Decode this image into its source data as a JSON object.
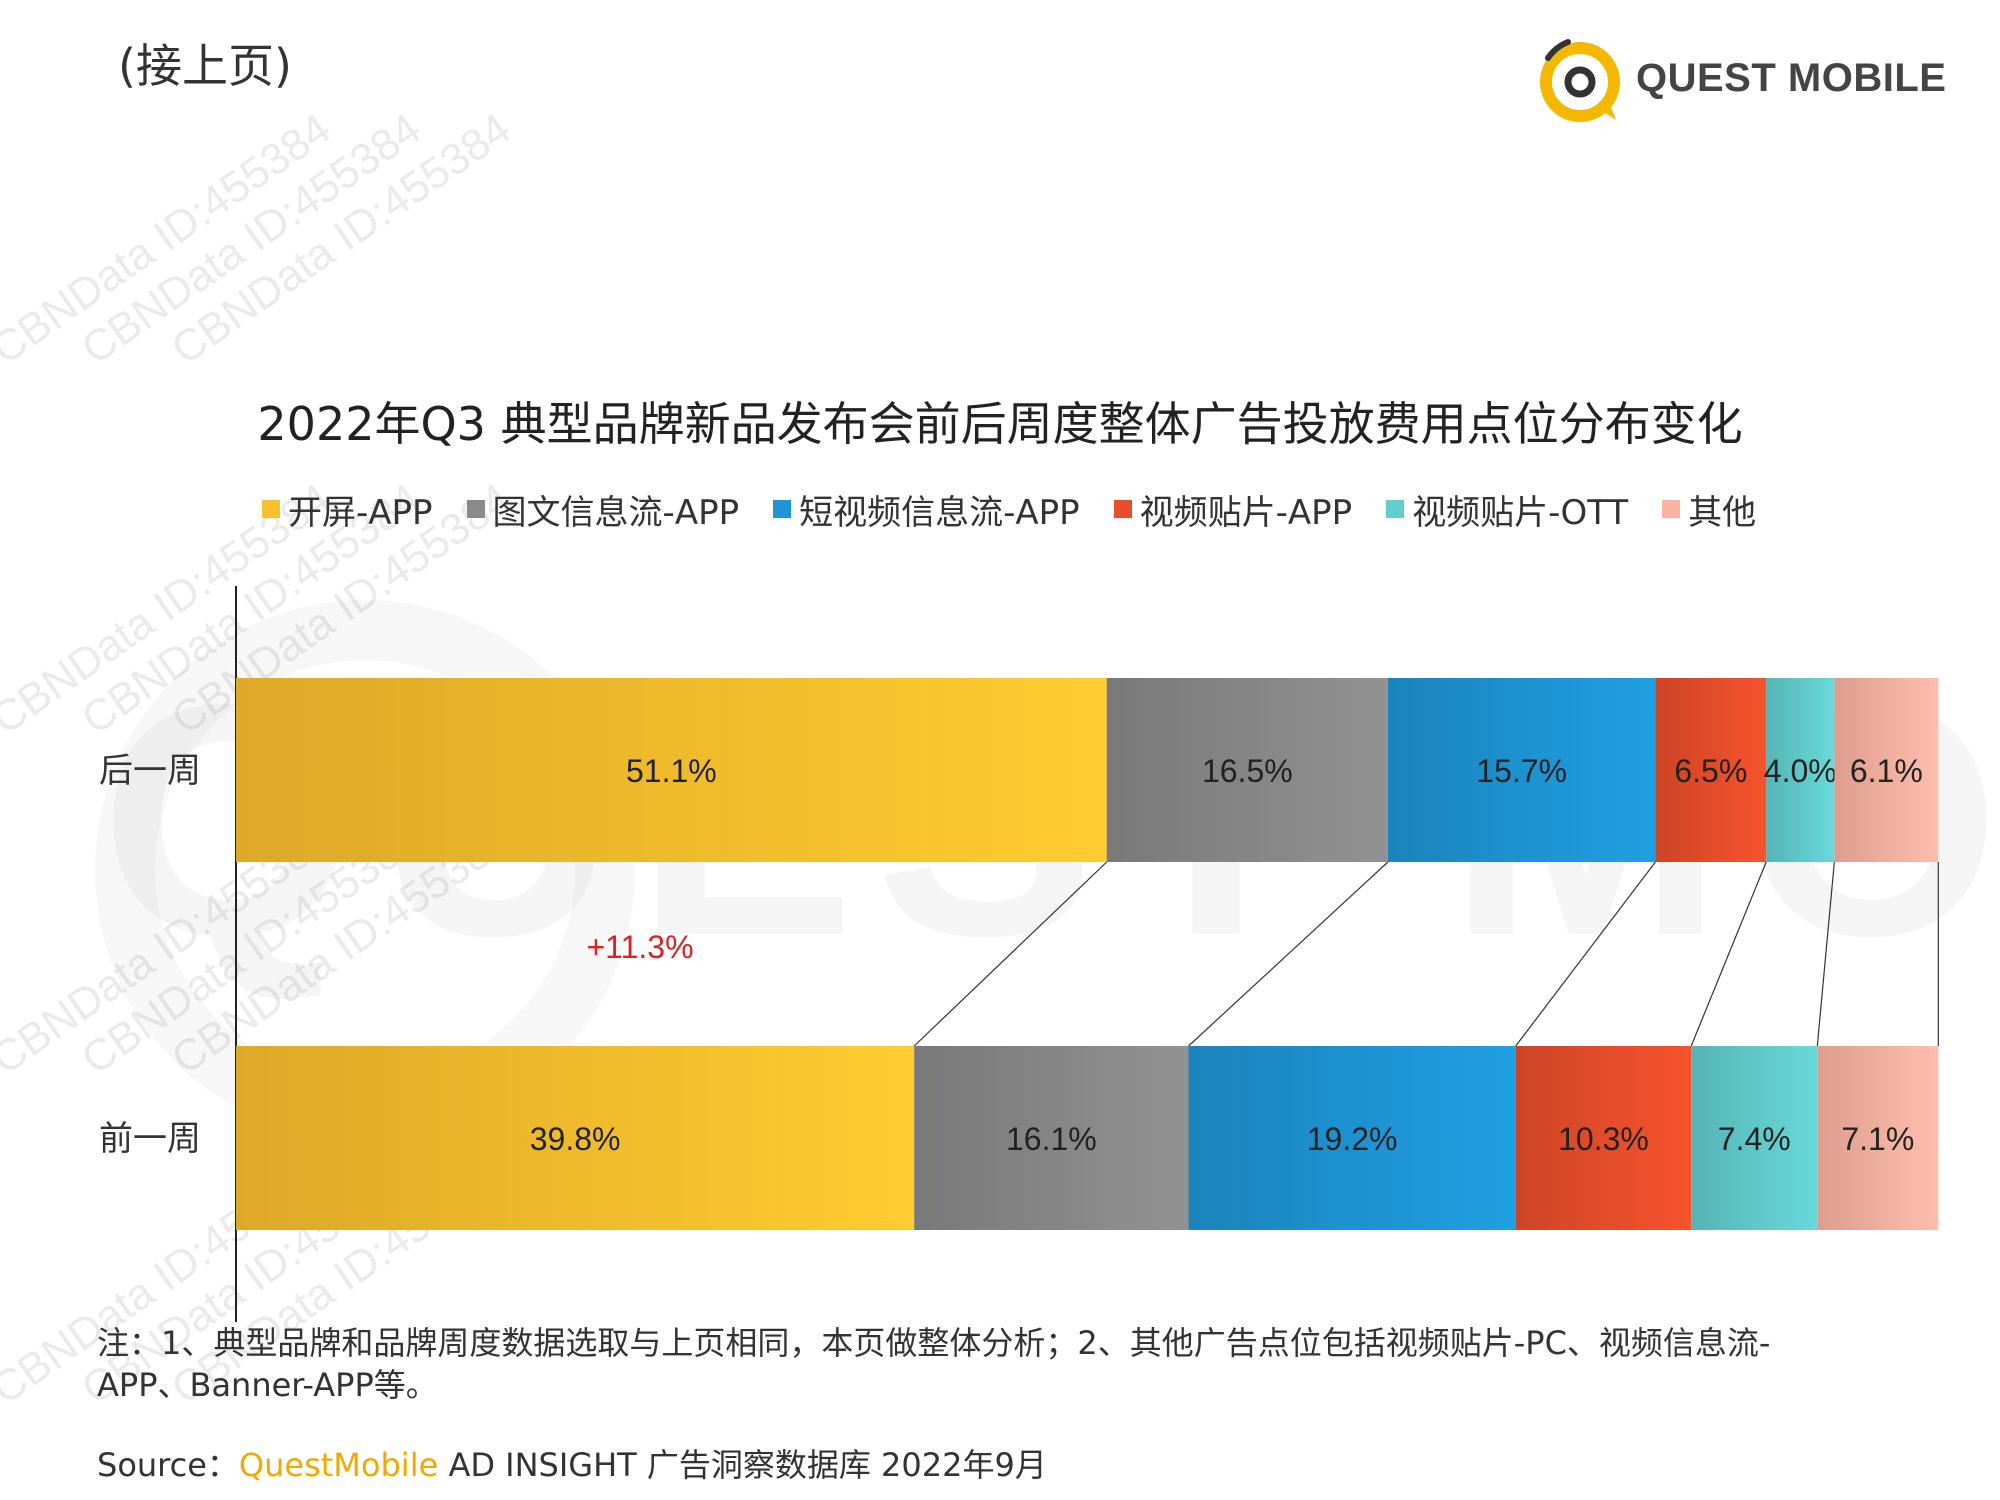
{
  "header": {
    "continued_label": "(接上页)",
    "logo_text": "QUEST MOBILE",
    "logo_icon": "quest-mobile-logo-icon"
  },
  "watermark": {
    "text": "CBNData ID:455384",
    "logo_text": "QUEST MOBILE"
  },
  "chart_data": {
    "type": "bar",
    "orientation": "horizontal",
    "stacked": true,
    "percent": true,
    "title": "2022年Q3 典型品牌新品发布会前后周度整体广告投放费用点位分布变化",
    "categories": [
      "后一周",
      "前一周"
    ],
    "series": [
      {
        "name": "开屏-APP",
        "color": "#FBC02D",
        "values": [
          51.1,
          39.8
        ],
        "labels": [
          "51.1%",
          "39.8%"
        ]
      },
      {
        "name": "图文信息流-APP",
        "color": "#8A8A8A",
        "values": [
          16.5,
          16.1
        ],
        "labels": [
          "16.5%",
          "16.1%"
        ]
      },
      {
        "name": "短视频信息流-APP",
        "color": "#1E96D6",
        "values": [
          15.7,
          19.2
        ],
        "labels": [
          "15.7%",
          "19.2%"
        ]
      },
      {
        "name": "视频贴片-APP",
        "color": "#E94E2A",
        "values": [
          6.5,
          10.3
        ],
        "labels": [
          "6.5%",
          "10.3%"
        ]
      },
      {
        "name": "视频贴片-OTT",
        "color": "#62CDCD",
        "values": [
          4.0,
          7.4
        ],
        "labels": [
          "4.0%",
          "7.4%"
        ]
      },
      {
        "name": "其他",
        "color": "#FBB3A3",
        "values": [
          6.1,
          7.1
        ],
        "labels": [
          "6.1%",
          "7.1%"
        ]
      }
    ],
    "annotations": [
      {
        "text": "+11.3%",
        "color": "#E02020"
      }
    ],
    "legend": "top",
    "grid": false,
    "xlim": [
      0,
      100
    ]
  },
  "footer": {
    "note_line1": "注：1、典型品牌和品牌周度数据选取与上页相同，本页做整体分析；2、其他广告点位包括视频贴片-PC、视频信息流-",
    "note_line2": "APP、Banner-APP等。",
    "source_label": "Source：",
    "source_brand": "QuestMobile",
    "source_text": " AD INSIGHT 广告洞察数据库 2022年9月"
  }
}
